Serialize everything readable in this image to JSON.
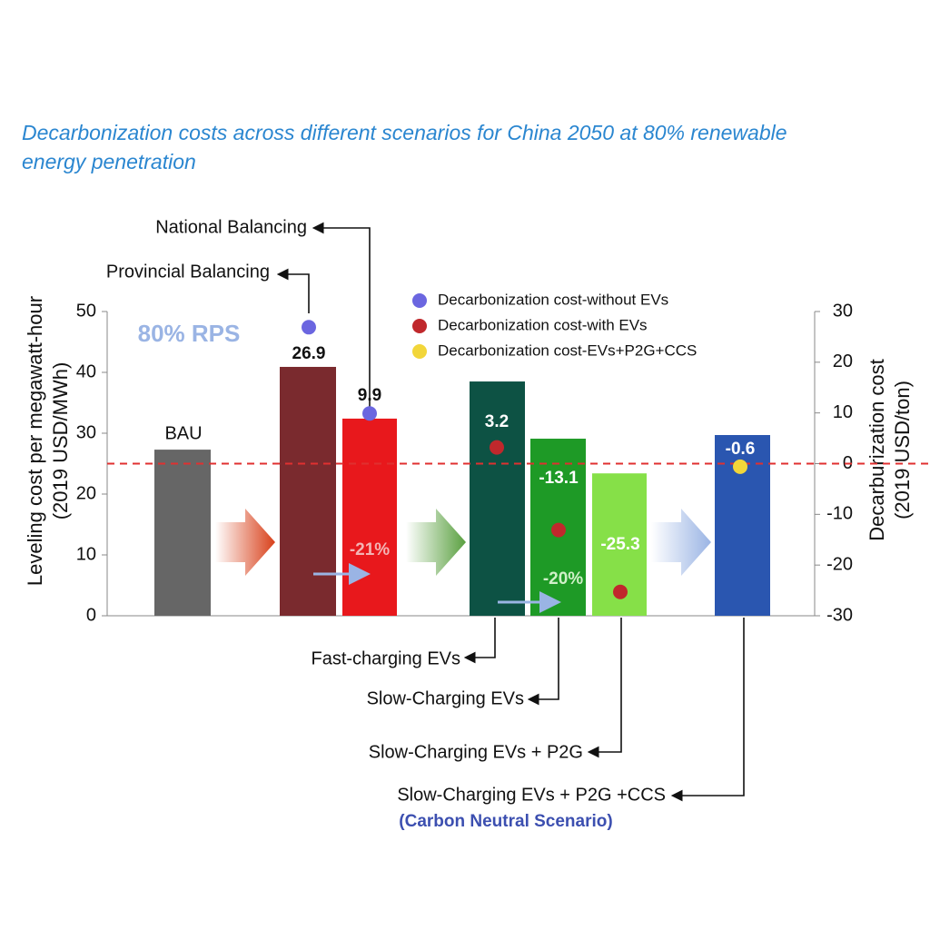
{
  "chart_data": {
    "type": "bar",
    "title": "Decarbonization costs across different scenarios for China 2050 at 80% renewable energy penetration",
    "ylabel": [
      "Leveling cost per megawatt-hour",
      "(2019 USD/MWh)"
    ],
    "y2label": [
      "Decarburization cost",
      "(2019 USD/ton)"
    ],
    "categories": [
      "BAU",
      "Provincial Balancing",
      "National Balancing",
      "Fast-charging EVs",
      "Slow-Charging EVs",
      "Slow-Charging EVs + P2G",
      "Slow-Charging EVs + P2G +CCS"
    ],
    "values": [
      27.3,
      40.9,
      32.4,
      38.5,
      29.1,
      23.4,
      29.7
    ],
    "colors": [
      "#666666",
      "#7a2a2e",
      "#e8181c",
      "#0d5244",
      "#1e9a26",
      "#86e048",
      "#2a56b0"
    ],
    "ylim": [
      0,
      50
    ],
    "yticks": [
      0,
      10,
      20,
      30,
      40,
      50
    ],
    "y2lim": [
      -30,
      30
    ],
    "y2ticks": [
      -30,
      -20,
      -10,
      0,
      10,
      20,
      30
    ],
    "series": [
      {
        "name": "Decarbonization cost-without EVs",
        "color": "#6b66e0",
        "axis": "y2",
        "values": [
          null,
          26.9,
          9.9,
          null,
          null,
          null,
          null
        ]
      },
      {
        "name": "Decarbonization cost-with EVs",
        "color": "#c0282c",
        "axis": "y2",
        "values": [
          null,
          null,
          null,
          3.2,
          -13.1,
          -25.3,
          null
        ]
      },
      {
        "name": "Decarbonization cost-EVs+P2G+CCS",
        "color": "#f2d63a",
        "axis": "y2",
        "values": [
          null,
          null,
          null,
          null,
          null,
          null,
          -0.6
        ]
      }
    ],
    "reference_line": {
      "value": 0,
      "axis": "y2",
      "color": "#e03030"
    },
    "annotations": [
      "80% RPS",
      "-21%",
      "-20%",
      "(Carbon Neutral Scenario)"
    ]
  }
}
